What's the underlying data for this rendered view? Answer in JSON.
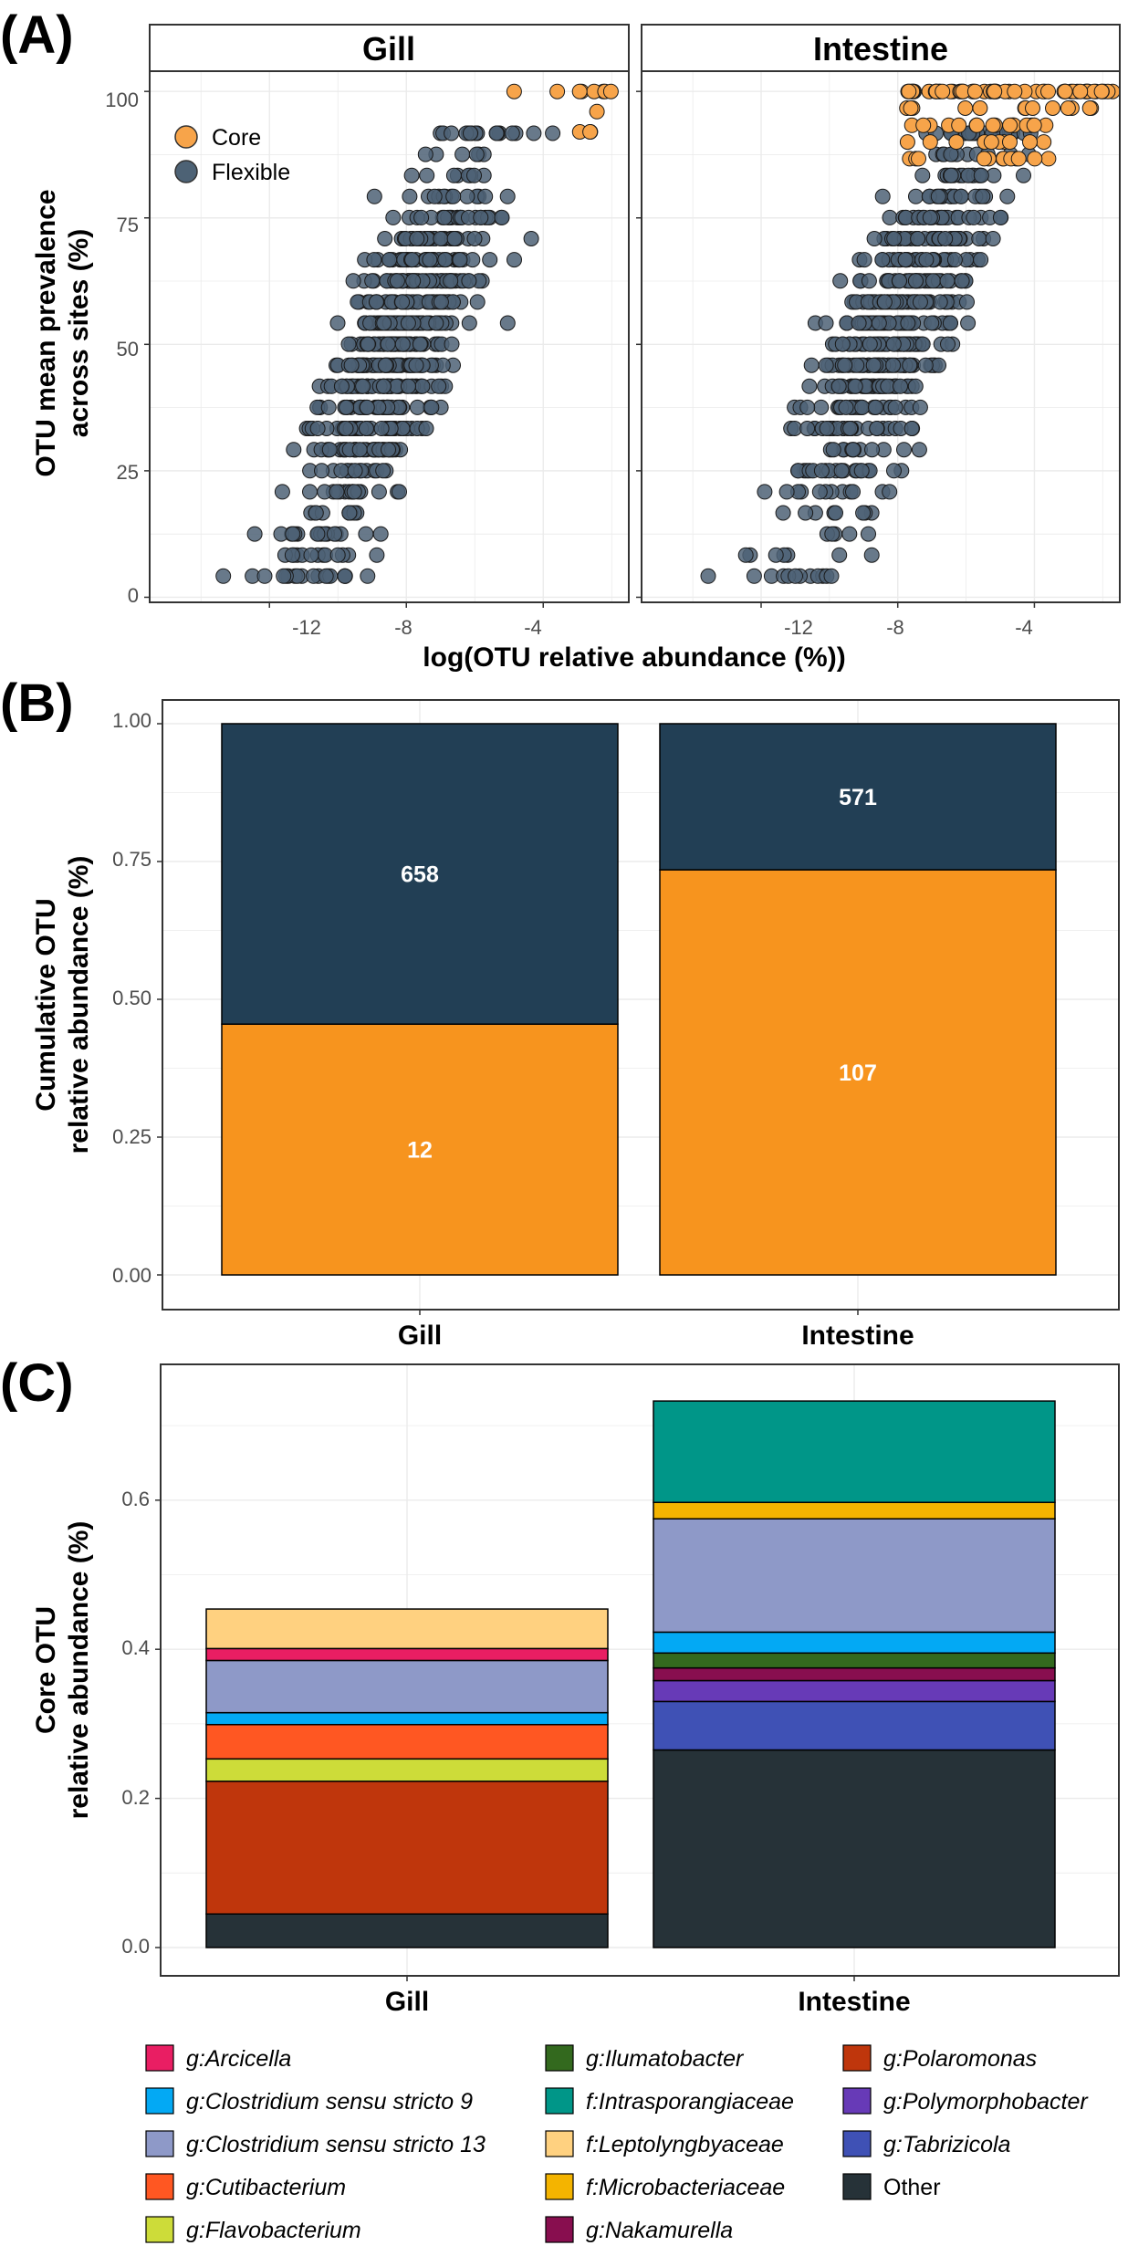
{
  "chart_data": [
    {
      "panel": "(A)",
      "type": "scatter",
      "facets": [
        "Gill",
        "Intestine"
      ],
      "xlabel": "log(OTU relative abundance (%))",
      "ylabel": [
        "OTU mean prevalence",
        "across sites (%)"
      ],
      "x_ticks": [
        "-12",
        "-8",
        "-4"
      ],
      "y_ticks": [
        "0",
        "25",
        "50",
        "75",
        "100"
      ],
      "xlim": [
        -15.5,
        -1.5
      ],
      "ylim": [
        -1,
        104
      ],
      "legend": [
        {
          "label": "Core",
          "color": "#f7a44a"
        },
        {
          "label": "Flexible",
          "color": "#4d6275"
        }
      ],
      "points_summary": {
        "Gill": {
          "core_count": 12,
          "flexible_count": 658
        },
        "Intestine": {
          "core_count": 107,
          "flexible_count": 571
        }
      }
    },
    {
      "panel": "(B)",
      "type": "bar",
      "stacked": true,
      "categories": [
        "Gill",
        "Intestine"
      ],
      "ylabel": [
        "Cumulative OTU",
        "relative abundance (%)"
      ],
      "y_ticks": [
        "0.00",
        "0.25",
        "0.50",
        "0.75",
        "1.00"
      ],
      "ylim": [
        0,
        1.05
      ],
      "series": [
        {
          "name": "Core",
          "color": "#f7941e",
          "values": [
            0.455,
            0.735
          ],
          "labels": [
            "12",
            "107"
          ]
        },
        {
          "name": "Flexible",
          "color": "#223f55",
          "values": [
            0.545,
            0.265
          ],
          "labels": [
            "658",
            "571"
          ]
        }
      ]
    },
    {
      "panel": "(C)",
      "type": "bar",
      "stacked": true,
      "categories": [
        "Gill",
        "Intestine"
      ],
      "ylabel": [
        "Core OTU",
        "relative abundance (%)"
      ],
      "y_ticks": [
        "0.0",
        "0.2",
        "0.4",
        "0.6"
      ],
      "ylim": [
        -0.03,
        0.77
      ],
      "series": [
        {
          "name": "Other",
          "color": "#263238",
          "values": [
            0.045,
            0.265
          ]
        },
        {
          "name": "g:Polaromonas",
          "color": "#bf360c",
          "values": [
            0.178,
            0.0
          ]
        },
        {
          "name": "g:Tabrizicola",
          "color": "#3f51b5",
          "values": [
            0.0,
            0.065
          ]
        },
        {
          "name": "g:Flavobacterium",
          "color": "#cddc39",
          "values": [
            0.03,
            0.0
          ]
        },
        {
          "name": "g:Polymorphobacter",
          "color": "#673ab7",
          "values": [
            0.0,
            0.028
          ]
        },
        {
          "name": "g:Nakamurella",
          "color": "#880e4f",
          "values": [
            0.0,
            0.017
          ]
        },
        {
          "name": "g:Cutibacterium",
          "color": "#ff5722",
          "values": [
            0.046,
            0.0
          ]
        },
        {
          "name": "g:Ilumatobacter",
          "color": "#33691e",
          "values": [
            0.0,
            0.02
          ]
        },
        {
          "name": "g:Clostridium sensu stricto 9",
          "color": "#03a9f4",
          "values": [
            0.016,
            0.028
          ]
        },
        {
          "name": "g:Clostridium sensu stricto 13",
          "color": "#8e99c8",
          "values": [
            0.07,
            0.152
          ]
        },
        {
          "name": "f:Microbacteriaceae",
          "color": "#f4b400",
          "values": [
            0.0,
            0.022
          ]
        },
        {
          "name": "f:Intrasporangiaceae",
          "color": "#009688",
          "values": [
            0.0,
            0.136
          ]
        },
        {
          "name": "g:Arcicella",
          "color": "#e91e63",
          "values": [
            0.016,
            0.0
          ]
        },
        {
          "name": "f:Leptolyngbyaceae",
          "color": "#ffd180",
          "values": [
            0.053,
            0.0
          ]
        }
      ],
      "legend_order": [
        "g:Arcicella",
        "g:Clostridium sensu stricto 9",
        "g:Clostridium sensu stricto 13",
        "g:Cutibacterium",
        "g:Flavobacterium",
        "g:Ilumatobacter",
        "f:Intrasporangiaceae",
        "f:Leptolyngbyaceae",
        "f:Microbacteriaceae",
        "g:Nakamurella",
        "g:Polaromonas",
        "g:Polymorphobacter",
        "g:Tabrizicola",
        "Other"
      ]
    }
  ]
}
